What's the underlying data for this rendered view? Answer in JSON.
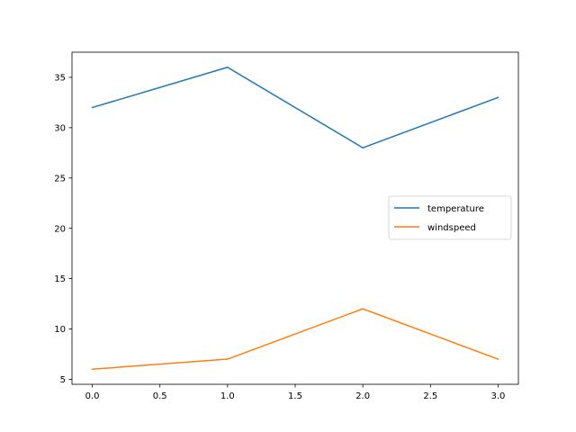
{
  "chart_data": {
    "type": "line",
    "title": "",
    "xlabel": "",
    "ylabel": "",
    "x": [
      0,
      1,
      2,
      3
    ],
    "xlim": [
      -0.15,
      3.15
    ],
    "ylim": [
      4.5,
      37.5
    ],
    "xticks": [
      0.0,
      0.5,
      1.0,
      1.5,
      2.0,
      2.5,
      3.0
    ],
    "xtick_labels": [
      "0.0",
      "0.5",
      "1.0",
      "1.5",
      "2.0",
      "2.5",
      "3.0"
    ],
    "yticks": [
      5,
      10,
      15,
      20,
      25,
      30,
      35
    ],
    "ytick_labels": [
      "5",
      "10",
      "15",
      "20",
      "25",
      "30",
      "35"
    ],
    "grid": false,
    "legend_position": "center-right",
    "series": [
      {
        "name": "temperature",
        "values": [
          32,
          36,
          28,
          33
        ],
        "color": "#1f77b4"
      },
      {
        "name": "windspeed",
        "values": [
          6,
          7,
          12,
          7
        ],
        "color": "#ff7f0e"
      }
    ]
  }
}
